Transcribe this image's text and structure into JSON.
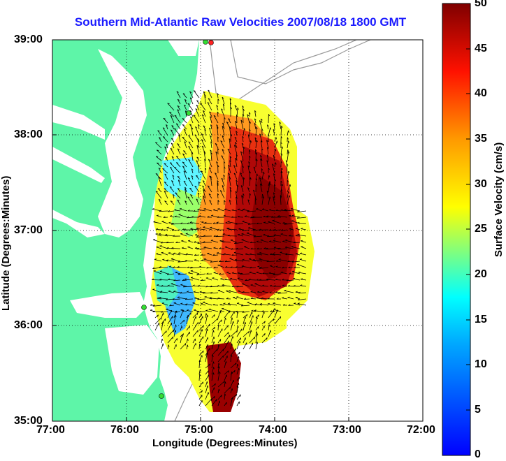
{
  "title": "Southern Mid-Atlantic Raw Velocities 2007/08/18 1800 GMT",
  "axes": {
    "xlabel": "Longitude (Degrees:Minutes)",
    "ylabel": "Latitude (Degrees:Minutes)",
    "x_ticks": [
      "77:00",
      "76:00",
      "75:00",
      "74:00",
      "73:00",
      "72:00"
    ],
    "y_ticks": [
      "39:00",
      "38:00",
      "37:00",
      "36:00",
      "35:00"
    ],
    "xlim": [
      -77,
      -72
    ],
    "ylim": [
      35,
      39
    ],
    "grid": "dotted"
  },
  "colorbar": {
    "label": "Surface Velocity (cm/s)",
    "ticks": [
      "50",
      "45",
      "40",
      "35",
      "30",
      "25",
      "20",
      "15",
      "10",
      "5",
      "0"
    ],
    "range": [
      0,
      50
    ],
    "colormap": "jet"
  },
  "colors": {
    "land": "#5ef5a8",
    "title": "#1a1aff",
    "station_green": "#33dd33",
    "station_red": "#ff2222"
  }
}
